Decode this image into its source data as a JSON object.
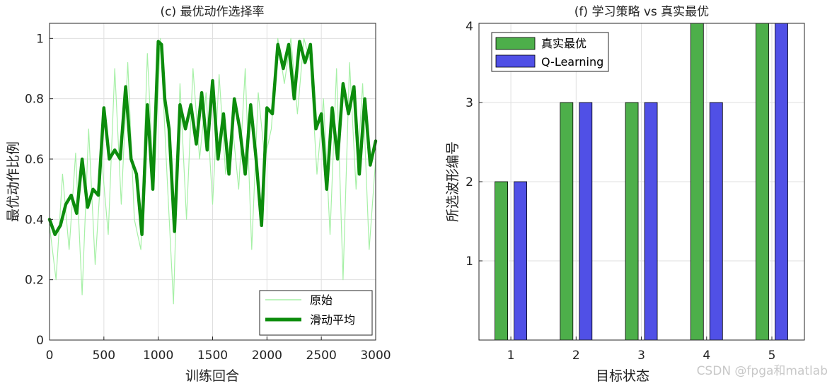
{
  "chart_data": [
    {
      "type": "line",
      "title": "(c) 最优动作选择率",
      "xlabel": "训练回合",
      "ylabel": "最优动作比例",
      "xlim": [
        0,
        3000
      ],
      "ylim": [
        0,
        1.05
      ],
      "xticks": [
        0,
        500,
        1000,
        1500,
        2000,
        2500,
        3000
      ],
      "xtick_labels": [
        "0",
        "500",
        "1000",
        "1500",
        "2000",
        "2500",
        "3000"
      ],
      "yticks": [
        0,
        0.2,
        0.4,
        0.6,
        0.8,
        1
      ],
      "ytick_labels": [
        "0",
        "0.2",
        "0.4",
        "0.6",
        "0.8",
        "1"
      ],
      "grid": true,
      "legend_position": "bottom-right",
      "series": [
        {
          "name": "原始",
          "color": "#a6f0a6",
          "style": "thin noisy line",
          "x": [
            0,
            60,
            120,
            180,
            240,
            300,
            360,
            420,
            480,
            540,
            600,
            660,
            720,
            780,
            840,
            900,
            960,
            1020,
            1080,
            1140,
            1200,
            1260,
            1320,
            1380,
            1440,
            1500,
            1560,
            1620,
            1680,
            1740,
            1800,
            1860,
            1920,
            1980,
            2040,
            2100,
            2160,
            2220,
            2280,
            2340,
            2400,
            2460,
            2520,
            2580,
            2640,
            2700,
            2760,
            2820,
            2880,
            2940,
            3000
          ],
          "y": [
            0.38,
            0.2,
            0.55,
            0.3,
            0.62,
            0.15,
            0.7,
            0.25,
            0.6,
            0.35,
            0.9,
            0.45,
            0.92,
            0.4,
            0.3,
            0.95,
            0.5,
            1.0,
            0.55,
            0.12,
            0.85,
            0.4,
            0.9,
            0.6,
            0.82,
            0.45,
            0.88,
            0.55,
            0.72,
            0.5,
            0.9,
            0.3,
            0.82,
            0.6,
            0.7,
            1.0,
            0.85,
            1.0,
            0.75,
            1.0,
            0.92,
            0.55,
            0.8,
            0.35,
            0.9,
            0.2,
            0.92,
            0.5,
            0.85,
            0.3,
            0.6
          ]
        },
        {
          "name": "滑动平均",
          "color": "#0c8c0c",
          "style": "thick line",
          "x": [
            0,
            50,
            100,
            150,
            200,
            250,
            300,
            350,
            400,
            450,
            500,
            550,
            600,
            650,
            700,
            750,
            800,
            850,
            900,
            950,
            1000,
            1030,
            1060,
            1100,
            1150,
            1200,
            1250,
            1300,
            1350,
            1400,
            1450,
            1500,
            1550,
            1600,
            1650,
            1700,
            1750,
            1800,
            1850,
            1900,
            1950,
            2000,
            2050,
            2100,
            2150,
            2200,
            2250,
            2300,
            2350,
            2400,
            2450,
            2500,
            2550,
            2600,
            2650,
            2700,
            2750,
            2800,
            2850,
            2900,
            2950,
            3000
          ],
          "y": [
            0.4,
            0.35,
            0.38,
            0.45,
            0.48,
            0.42,
            0.6,
            0.44,
            0.5,
            0.48,
            0.77,
            0.6,
            0.63,
            0.6,
            0.84,
            0.6,
            0.55,
            0.35,
            0.78,
            0.5,
            0.99,
            0.98,
            0.8,
            0.7,
            0.36,
            0.78,
            0.7,
            0.78,
            0.65,
            0.82,
            0.63,
            0.86,
            0.6,
            0.75,
            0.55,
            0.8,
            0.7,
            0.55,
            0.78,
            0.6,
            0.38,
            0.77,
            0.75,
            0.98,
            0.9,
            0.98,
            0.8,
            0.99,
            0.92,
            0.98,
            0.7,
            0.75,
            0.5,
            0.77,
            0.6,
            0.85,
            0.75,
            0.84,
            0.55,
            0.8,
            0.58,
            0.66
          ]
        }
      ]
    },
    {
      "type": "bar",
      "title": "(f) 学习策略 vs 真实最优",
      "xlabel": "目标状态",
      "ylabel": "所选波形编号",
      "categories": [
        "1",
        "2",
        "3",
        "4",
        "5"
      ],
      "ylim": [
        0,
        4
      ],
      "yticks": [
        1,
        2,
        3,
        4
      ],
      "ytick_labels": [
        "1",
        "2",
        "3",
        "4"
      ],
      "grid": true,
      "legend_position": "top-left",
      "series": [
        {
          "name": "真实最优",
          "color": "#4daf4a",
          "values": [
            2,
            3,
            3,
            4,
            4
          ]
        },
        {
          "name": "Q-Learning",
          "color": "#5050e6",
          "values": [
            2,
            3,
            3,
            3,
            4
          ]
        }
      ]
    }
  ],
  "watermark": "CSDN @fpga和matlab"
}
